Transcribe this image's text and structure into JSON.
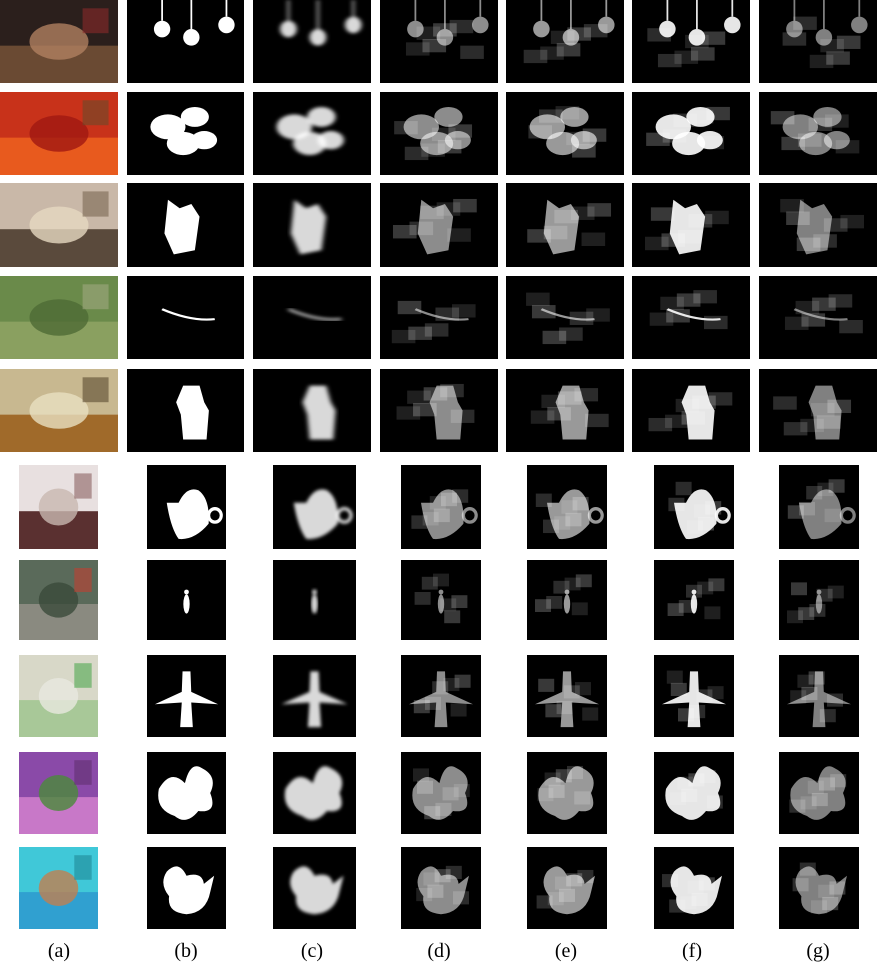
{
  "column_labels": [
    "(a)",
    "(b)",
    "(c)",
    "(d)",
    "(e)",
    "(f)",
    "(g)"
  ],
  "rows": [
    {
      "subject": "hanging bulbs",
      "photo_colors": [
        "#2b1f1c",
        "#6a4a33",
        "#b08060",
        "#8a2a2a"
      ]
    },
    {
      "subject": "tomatoes",
      "photo_colors": [
        "#c8321a",
        "#e85a1e",
        "#a01812",
        "#6a4a2a"
      ]
    },
    {
      "subject": "owl figurine",
      "photo_colors": [
        "#c9b8a8",
        "#5a4a3c",
        "#e6d8c0",
        "#7a6652"
      ]
    },
    {
      "subject": "stick on grass",
      "photo_colors": [
        "#6a8a4a",
        "#8aa060",
        "#4e6a34",
        "#a0a880"
      ]
    },
    {
      "subject": "kettle on shelf",
      "photo_colors": [
        "#c8b890",
        "#a06a2a",
        "#e8e0c0",
        "#5a4a30"
      ]
    },
    {
      "subject": "teapot",
      "photo_colors": [
        "#e8e0e0",
        "#5a3030",
        "#c8b8b0",
        "#8a6060"
      ]
    },
    {
      "subject": "person walking",
      "photo_colors": [
        "#5a6a5a",
        "#8a8a80",
        "#3a4a3a",
        "#c04030"
      ]
    },
    {
      "subject": "toy airplane",
      "photo_colors": [
        "#d8d8c8",
        "#a8c898",
        "#e8e8e0",
        "#50a850"
      ]
    },
    {
      "subject": "orchid",
      "photo_colors": [
        "#8a4aa8",
        "#c878c8",
        "#4a8a3a",
        "#603070"
      ]
    },
    {
      "subject": "bird figurine",
      "photo_colors": [
        "#40c8d8",
        "#30a0d0",
        "#c08050",
        "#208898"
      ]
    }
  ]
}
